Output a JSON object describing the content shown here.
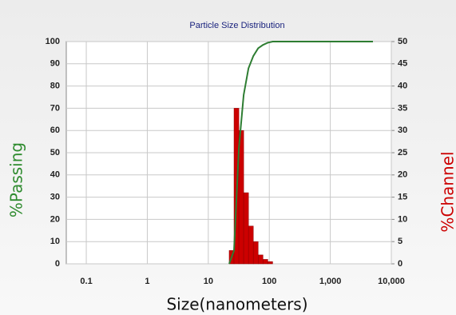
{
  "chart_data": {
    "type": "histogram",
    "title": "Particle Size Distribution",
    "xlabel": "Size(nanometers)",
    "ylabel": "%Passing",
    "y2label": "%Channel",
    "xscale": "log",
    "xlim": [
      0.047,
      10000
    ],
    "xticks": [
      0.1,
      1,
      10,
      100,
      {
        "value": 1000,
        "label": "1,000"
      },
      {
        "value": 10000,
        "label": "10,000"
      }
    ],
    "ylim": [
      0,
      100
    ],
    "yticks": [
      0,
      10,
      20,
      30,
      40,
      50,
      60,
      70,
      80,
      90,
      100
    ],
    "y2lim": [
      0,
      50
    ],
    "y2ticks": [
      0,
      5,
      10,
      15,
      20,
      25,
      30,
      35,
      40,
      45,
      50
    ],
    "grid": true,
    "bins": [
      22,
      26.4,
      31.7,
      38.0,
      45.6,
      54.7,
      65.7,
      78.8,
      94.6,
      113.5
    ],
    "values": [
      3,
      35,
      30,
      16,
      8.5,
      5,
      2,
      1,
      0.5
    ],
    "axis": "y2",
    "color": "#cc0000",
    "overlay": {
      "type": "line",
      "x": [
        22,
        26.4,
        31.7,
        38.0,
        45.6,
        54.7,
        65.7,
        78.8,
        94.6,
        113.5,
        5000
      ],
      "values": [
        0,
        6,
        52,
        76,
        88,
        93.5,
        97,
        98.5,
        99.5,
        100,
        100
      ],
      "color": "#2e7d32"
    }
  }
}
